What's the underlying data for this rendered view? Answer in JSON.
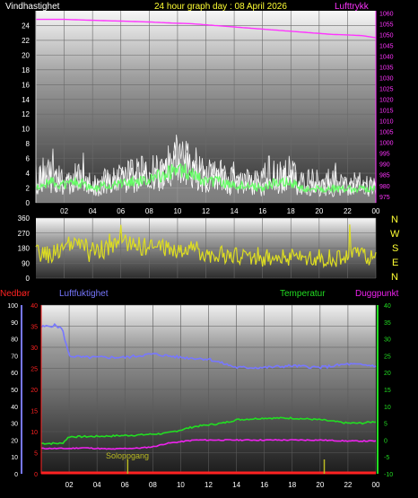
{
  "header": {
    "left_label": "Vindhastighet",
    "title": "24 hour graph day : 08 April 2026",
    "right_label": "Lufttrykk"
  },
  "colors": {
    "wind": "#ffffff",
    "gust_fill": "#bdbdbd",
    "wind_avg": "#66ff66",
    "pressure": "#ff33ff",
    "direction": "#dddd22",
    "rain": "#ff2222",
    "humidity": "#7777ff",
    "temperature": "#22dd22",
    "dewpoint": "#ee22ee",
    "sunrise": "#bbbb22"
  },
  "compass_letters": [
    "N",
    "W",
    "S",
    "E",
    "N"
  ],
  "lower_labels": {
    "rain": "Nedbør",
    "humidity": "Luftfuktighet",
    "temperature": "Temperatur",
    "dewpoint": "Duggpunkt",
    "sunrise": "Soloppgang"
  },
  "chart_data": [
    {
      "type": "line",
      "panel": "wind_pressure",
      "x_tick_labels": [
        "02",
        "04",
        "06",
        "08",
        "10",
        "12",
        "14",
        "16",
        "18",
        "20",
        "22",
        "00"
      ],
      "xlim": [
        0,
        24
      ],
      "ylabel_left": "Vindhastighet",
      "ylim_left": [
        0,
        26
      ],
      "yticks_left": [
        0,
        2,
        4,
        6,
        8,
        10,
        12,
        14,
        16,
        18,
        20,
        22,
        24
      ],
      "ylabel_right": "Lufttrykk",
      "ylim_right": [
        972,
        1061
      ],
      "yticks_right": [
        975,
        980,
        985,
        990,
        995,
        1000,
        1005,
        1010,
        1015,
        1020,
        1025,
        1030,
        1035,
        1040,
        1045,
        1050,
        1055,
        1060
      ],
      "series": [
        {
          "key": "wind",
          "x": [
            0,
            1,
            2,
            3,
            4,
            5,
            6,
            7,
            8,
            9,
            10,
            11,
            12,
            13,
            14,
            15,
            16,
            17,
            18,
            19,
            20,
            21,
            22,
            23,
            24
          ],
          "values": [
            2,
            3,
            2.5,
            3,
            2,
            2.5,
            3,
            3,
            3.5,
            4,
            5,
            4,
            3,
            3,
            2.5,
            2.5,
            2,
            3,
            3,
            2,
            2,
            2,
            2,
            2,
            2
          ]
        },
        {
          "key": "gust",
          "x": [
            0,
            1,
            2,
            3,
            4,
            5,
            6,
            7,
            8,
            9,
            10,
            11,
            12,
            13,
            14,
            15,
            16,
            17,
            18,
            19,
            20,
            21,
            22,
            23,
            24
          ],
          "values": [
            5,
            5,
            4,
            5,
            4,
            4,
            5,
            5,
            6,
            6,
            8,
            7,
            5,
            5,
            4,
            4,
            4,
            5,
            5,
            4,
            4,
            4,
            3.5,
            3.5,
            3
          ]
        },
        {
          "key": "pressure",
          "x": [
            0,
            1,
            2,
            3,
            4,
            5,
            6,
            7,
            8,
            9,
            10,
            11,
            12,
            13,
            14,
            15,
            16,
            17,
            18,
            19,
            20,
            21,
            22,
            23,
            24
          ],
          "values": [
            1057,
            1057,
            1057,
            1056.8,
            1056.6,
            1056.4,
            1056.2,
            1056,
            1055.8,
            1055.5,
            1055.2,
            1055,
            1054.5,
            1054,
            1053.5,
            1053,
            1052.5,
            1052,
            1051.5,
            1051,
            1050.5,
            1050,
            1049.8,
            1049.5,
            1048.5
          ]
        }
      ]
    },
    {
      "type": "line",
      "panel": "wind_direction",
      "xlim": [
        0,
        24
      ],
      "ylim": [
        0,
        360
      ],
      "yticks": [
        0,
        90,
        180,
        270,
        360
      ],
      "series": [
        {
          "key": "direction",
          "x": [
            0,
            1,
            2,
            3,
            4,
            5,
            6,
            7,
            8,
            9,
            10,
            11,
            12,
            13,
            14,
            15,
            16,
            17,
            18,
            19,
            20,
            21,
            22,
            23,
            24
          ],
          "values": [
            150,
            140,
            190,
            200,
            180,
            170,
            220,
            200,
            180,
            190,
            160,
            170,
            150,
            140,
            130,
            130,
            120,
            120,
            130,
            130,
            120,
            120,
            125,
            140,
            110
          ]
        }
      ]
    },
    {
      "type": "line",
      "panel": "rain_humidity_temp",
      "x_tick_labels": [
        "02",
        "04",
        "06",
        "08",
        "10",
        "12",
        "14",
        "16",
        "18",
        "20",
        "22",
        "00"
      ],
      "xlim": [
        0,
        24
      ],
      "ylabel_left_outer": "Nedbør",
      "ylim_left_outer": [
        0,
        100
      ],
      "yticks_left_outer": [
        0,
        10,
        20,
        30,
        40,
        50,
        60,
        70,
        80,
        90,
        100
      ],
      "ylabel_left_inner": "Luftfuktighet",
      "ylim_left_inner": [
        0,
        40
      ],
      "yticks_left_inner": [
        0,
        5,
        10,
        15,
        20,
        25,
        30,
        35,
        40
      ],
      "ylabel_right": "Temperatur",
      "ylim_right": [
        -10,
        40
      ],
      "yticks_right": [
        -10,
        -5,
        0,
        5,
        10,
        15,
        20,
        25,
        30,
        35,
        40
      ],
      "series": [
        {
          "key": "humidity",
          "axis": "outer",
          "x": [
            0,
            1,
            1.5,
            2,
            3,
            4,
            6,
            8,
            10,
            12,
            14,
            16,
            18,
            20,
            22,
            24
          ],
          "values": [
            87,
            88,
            86,
            70,
            69,
            69,
            69,
            71,
            69,
            68,
            63,
            63,
            64,
            63,
            65,
            64
          ]
        },
        {
          "key": "temperature",
          "axis": "right",
          "x": [
            0,
            1,
            1.5,
            2,
            3,
            5,
            7,
            9,
            10,
            11,
            12,
            13,
            14,
            16,
            18,
            20,
            22,
            23,
            24
          ],
          "values": [
            -1,
            -1,
            -1,
            1,
            1,
            1.2,
            1.5,
            2,
            3,
            4,
            4.5,
            5,
            6,
            6.5,
            6.5,
            6,
            5,
            5,
            5.5
          ]
        },
        {
          "key": "dewpoint",
          "axis": "right",
          "x": [
            0,
            1,
            2,
            3,
            4,
            5,
            6,
            7,
            8,
            9,
            10,
            11,
            12,
            14,
            16,
            18,
            20,
            22,
            24
          ],
          "values": [
            -2.5,
            -2.5,
            -2.5,
            -2.3,
            -2.5,
            -2.7,
            -2.5,
            -2.4,
            -2,
            -1,
            -0.5,
            0,
            0,
            0,
            0,
            0,
            0,
            -0.3,
            -0.3
          ]
        },
        {
          "key": "rain",
          "axis": "inner",
          "x": [
            0,
            24
          ],
          "values": [
            0,
            0
          ]
        }
      ],
      "markers": [
        {
          "label": "Soloppgang",
          "x": 6.2
        },
        {
          "label": "",
          "x": 20.3
        }
      ]
    }
  ]
}
